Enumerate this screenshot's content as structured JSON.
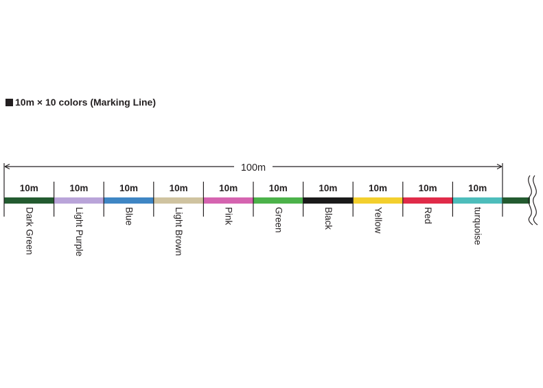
{
  "heading": {
    "symbol": "■",
    "text": "10m × 10 colors (Marking Line)"
  },
  "total_length": "100m",
  "segments": [
    {
      "length": "10m",
      "name": "Dark Green",
      "color": "#235b30"
    },
    {
      "length": "10m",
      "name": "Light Purple",
      "color": "#b9a4d9"
    },
    {
      "length": "10m",
      "name": "Blue",
      "color": "#3f86c4"
    },
    {
      "length": "10m",
      "name": "Light Brown",
      "color": "#cfc3a0"
    },
    {
      "length": "10m",
      "name": "Pink",
      "color": "#d564b0"
    },
    {
      "length": "10m",
      "name": "Green",
      "color": "#4cb24a"
    },
    {
      "length": "10m",
      "name": "Black",
      "color": "#1a1a1a"
    },
    {
      "length": "10m",
      "name": "Yellow",
      "color": "#f3cf2d"
    },
    {
      "length": "10m",
      "name": "Red",
      "color": "#e02b49"
    },
    {
      "length": "10m",
      "name": "turquoise",
      "color": "#4dbdbb"
    }
  ],
  "continuation_color": "#235b30"
}
